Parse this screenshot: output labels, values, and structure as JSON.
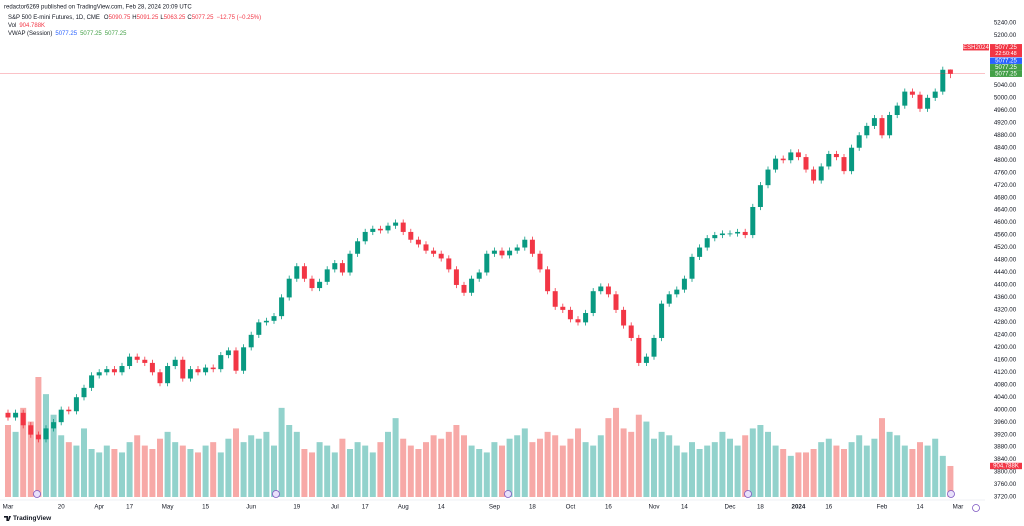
{
  "chart_data": {
    "type": "candlestick",
    "publisher": "redactor6269 published on TradingView.com, Feb 28, 2024 20:09 UTC",
    "title": "S&P 500 E-mini Futures, 1D, CME",
    "ohlc_keys": [
      "O",
      "H",
      "L",
      "C"
    ],
    "change": "−12.75 (−0.25%)",
    "categories": [
      "Mar",
      null,
      null,
      null,
      null,
      null,
      null,
      "20",
      null,
      null,
      null,
      null,
      "Apr",
      null,
      null,
      null,
      "17",
      null,
      null,
      null,
      null,
      "May",
      null,
      null,
      null,
      null,
      "15",
      null,
      null,
      null,
      null,
      null,
      "Jun",
      null,
      null,
      null,
      null,
      null,
      "19",
      null,
      null,
      null,
      null,
      "Jul",
      null,
      null,
      null,
      "17",
      null,
      null,
      null,
      null,
      "Aug",
      null,
      null,
      null,
      null,
      "14",
      null,
      null,
      null,
      null,
      null,
      null,
      "Sep",
      null,
      null,
      null,
      null,
      "18",
      null,
      null,
      null,
      null,
      "Oct",
      null,
      null,
      null,
      null,
      "16",
      null,
      null,
      null,
      null,
      null,
      "Nov",
      null,
      null,
      null,
      "14",
      null,
      null,
      null,
      null,
      null,
      "Dec",
      null,
      null,
      null,
      "18",
      null,
      null,
      null,
      null,
      "2024",
      null,
      null,
      null,
      "16",
      null,
      null,
      null,
      null,
      null,
      null,
      "Feb",
      null,
      null,
      null,
      null,
      "14",
      null,
      null,
      null,
      null,
      "Mar"
    ],
    "series": [
      {
        "name": "ESH2024",
        "up_color": "#089981",
        "down_color": "#f23645",
        "open": [
          3990,
          3975,
          3990,
          3950,
          3920,
          3905,
          3940,
          3960,
          4000,
          3995,
          4040,
          4070,
          4110,
          4120,
          4130,
          4120,
          4140,
          4170,
          4160,
          4150,
          4120,
          4085,
          4140,
          4160,
          4100,
          4130,
          4120,
          4135,
          4130,
          4175,
          4190,
          4125,
          4200,
          4240,
          4280,
          4285,
          4300,
          4360,
          4420,
          4460,
          4420,
          4390,
          4410,
          4450,
          4470,
          4440,
          4500,
          4540,
          4570,
          4580,
          4575,
          4590,
          4600,
          4570,
          4545,
          4530,
          4510,
          4500,
          4485,
          4450,
          4400,
          4375,
          4420,
          4440,
          4500,
          4510,
          4495,
          4510,
          4520,
          4545,
          4500,
          4450,
          4380,
          4330,
          4320,
          4290,
          4280,
          4310,
          4380,
          4395,
          4370,
          4320,
          4270,
          4230,
          4150,
          4170,
          4230,
          4340,
          4370,
          4385,
          4420,
          4490,
          4520,
          4550,
          4560,
          4565,
          4565,
          4570,
          4560,
          4650,
          4720,
          4770,
          4805,
          4800,
          4825,
          4810,
          4770,
          4735,
          4780,
          4820,
          4810,
          4765,
          4840,
          4880,
          4910,
          4935,
          4880,
          4945,
          4975,
          5020,
          5010,
          4965,
          5000,
          5020,
          5090.75,
          null
        ],
        "high": [
          4000,
          4000,
          4000,
          3960,
          3930,
          3950,
          3970,
          4010,
          4010,
          4050,
          4080,
          4120,
          4130,
          4140,
          4140,
          4150,
          4180,
          4180,
          4170,
          4160,
          4130,
          4150,
          4170,
          4170,
          4140,
          4140,
          4145,
          4145,
          4185,
          4200,
          4200,
          4210,
          4250,
          4290,
          4295,
          4310,
          4370,
          4430,
          4470,
          4470,
          4430,
          4420,
          4460,
          4480,
          4480,
          4510,
          4550,
          4580,
          4590,
          4590,
          4600,
          4610,
          4610,
          4580,
          4555,
          4540,
          4520,
          4510,
          4495,
          4460,
          4410,
          4430,
          4450,
          4510,
          4520,
          4520,
          4520,
          4530,
          4555,
          4555,
          4510,
          4460,
          4390,
          4340,
          4330,
          4300,
          4320,
          4390,
          4405,
          4405,
          4380,
          4330,
          4280,
          4240,
          4180,
          4240,
          4350,
          4380,
          4395,
          4430,
          4500,
          4530,
          4560,
          4570,
          4575,
          4575,
          4580,
          4580,
          4660,
          4730,
          4780,
          4815,
          4815,
          4835,
          4835,
          4820,
          4780,
          4790,
          4830,
          4830,
          4820,
          4850,
          4890,
          4920,
          4945,
          4945,
          4955,
          4985,
          5030,
          5030,
          5020,
          5010,
          5030,
          5100,
          5091.25,
          null
        ],
        "low": [
          3965,
          3965,
          3940,
          3910,
          3895,
          3895,
          3930,
          3950,
          3985,
          3985,
          4030,
          4060,
          4100,
          4110,
          4110,
          4110,
          4130,
          4150,
          4140,
          4110,
          4075,
          4075,
          4130,
          4090,
          4090,
          4110,
          4110,
          4120,
          4120,
          4165,
          4115,
          4115,
          4190,
          4230,
          4270,
          4275,
          4290,
          4350,
          4410,
          4410,
          4380,
          4380,
          4400,
          4440,
          4430,
          4430,
          4490,
          4530,
          4560,
          4565,
          4565,
          4580,
          4560,
          4535,
          4520,
          4500,
          4490,
          4475,
          4440,
          4390,
          4365,
          4365,
          4410,
          4430,
          4490,
          4485,
          4485,
          4500,
          4510,
          4490,
          4440,
          4370,
          4320,
          4310,
          4280,
          4270,
          4270,
          4300,
          4370,
          4360,
          4310,
          4260,
          4220,
          4140,
          4140,
          4160,
          4220,
          4330,
          4360,
          4375,
          4410,
          4480,
          4510,
          4540,
          4550,
          4555,
          4555,
          4550,
          4550,
          4640,
          4710,
          4760,
          4790,
          4790,
          4800,
          4760,
          4725,
          4725,
          4770,
          4800,
          4755,
          4755,
          4830,
          4870,
          4900,
          4870,
          4870,
          4935,
          4965,
          5000,
          4955,
          4955,
          4990,
          5010,
          5063.25,
          null
        ],
        "close": [
          3975,
          3990,
          3950,
          3920,
          3905,
          3940,
          3960,
          4000,
          3995,
          4040,
          4070,
          4110,
          4120,
          4130,
          4120,
          4140,
          4170,
          4160,
          4150,
          4120,
          4085,
          4140,
          4160,
          4100,
          4130,
          4120,
          4135,
          4130,
          4175,
          4190,
          4125,
          4200,
          4240,
          4280,
          4285,
          4300,
          4360,
          4420,
          4460,
          4420,
          4390,
          4410,
          4450,
          4470,
          4440,
          4500,
          4540,
          4570,
          4580,
          4575,
          4590,
          4600,
          4570,
          4545,
          4530,
          4510,
          4500,
          4485,
          4450,
          4400,
          4375,
          4420,
          4440,
          4500,
          4510,
          4495,
          4510,
          4520,
          4545,
          4500,
          4450,
          4380,
          4330,
          4320,
          4290,
          4280,
          4310,
          4380,
          4395,
          4370,
          4320,
          4270,
          4230,
          4150,
          4170,
          4230,
          4340,
          4370,
          4385,
          4420,
          4490,
          4520,
          4550,
          4560,
          4565,
          4565,
          4570,
          4560,
          4650,
          4720,
          4770,
          4805,
          4800,
          4825,
          4810,
          4770,
          4735,
          4780,
          4820,
          4810,
          4765,
          4840,
          4880,
          4910,
          4935,
          4880,
          4945,
          4975,
          5020,
          5010,
          4965,
          5000,
          5020,
          5090,
          5077.25,
          null
        ]
      }
    ],
    "volume": {
      "name": "Vol",
      "up_color": "#92d2cc",
      "down_color": "#f7a9a7",
      "last_label": "904.788K",
      "values": [
        2100,
        1900,
        2600,
        2200,
        3500,
        3000,
        2400,
        1800,
        1600,
        1500,
        2000,
        1400,
        1300,
        1500,
        1400,
        1300,
        1600,
        1800,
        1500,
        1400,
        1700,
        1900,
        1600,
        1500,
        1400,
        1300,
        1500,
        1600,
        1300,
        1700,
        2000,
        1600,
        1800,
        1700,
        1900,
        1500,
        2600,
        2100,
        1900,
        1400,
        1300,
        1600,
        1500,
        1300,
        1700,
        1400,
        1600,
        1500,
        1300,
        1600,
        1900,
        2300,
        1700,
        1500,
        1400,
        1600,
        1800,
        1700,
        1900,
        2100,
        1800,
        1500,
        1400,
        1300,
        1600,
        1500,
        1700,
        1800,
        2000,
        1600,
        1700,
        1900,
        1800,
        1500,
        1700,
        2000,
        1600,
        1500,
        1800,
        2300,
        2600,
        2000,
        1900,
        2400,
        2200,
        1700,
        1900,
        1800,
        1500,
        1300,
        1600,
        1400,
        1500,
        1600,
        1900,
        1700,
        1500,
        1800,
        2000,
        2100,
        1900,
        1500,
        1400,
        1200,
        1300,
        1300,
        1400,
        1600,
        1700,
        1500,
        1400,
        1600,
        1800,
        1500,
        1700,
        2300,
        1900,
        1800,
        1500,
        1400,
        1600,
        1500,
        1700,
        1200,
        904.788,
        null
      ]
    },
    "vwap": {
      "name": "VWAP (Session)",
      "values": [
        5077.25,
        5077.25,
        5077.25
      ],
      "colors": [
        "#2962ff",
        "#43a047",
        "#43a047"
      ]
    },
    "countdown": "22:50:48",
    "ylim": [
      3720,
      5240
    ],
    "yticks": [
      {
        "value": 3720,
        "label": "3720.00"
      },
      {
        "value": 3760,
        "label": "3760.00"
      },
      {
        "value": 3800,
        "label": "3800.00"
      },
      {
        "value": 3840,
        "label": "3840.00"
      },
      {
        "value": 3880,
        "label": "3880.00"
      },
      {
        "value": 3920,
        "label": "3920.00"
      },
      {
        "value": 3960,
        "label": "3960.00"
      },
      {
        "value": 4000,
        "label": "4000.00"
      },
      {
        "value": 4040,
        "label": "4040.00"
      },
      {
        "value": 4080,
        "label": "4080.00"
      },
      {
        "value": 4120,
        "label": "4120.00"
      },
      {
        "value": 4160,
        "label": "4160.00"
      },
      {
        "value": 4200,
        "label": "4200.00"
      },
      {
        "value": 4240,
        "label": "4240.00"
      },
      {
        "value": 4280,
        "label": "4280.00"
      },
      {
        "value": 4320,
        "label": "4320.00"
      },
      {
        "value": 4360,
        "label": "4360.00"
      },
      {
        "value": 4400,
        "label": "4400.00"
      },
      {
        "value": 4440,
        "label": "4440.00"
      },
      {
        "value": 4480,
        "label": "4480.00"
      },
      {
        "value": 4520,
        "label": "4520.00"
      },
      {
        "value": 4560,
        "label": "4560.00"
      },
      {
        "value": 4600,
        "label": "4600.00"
      },
      {
        "value": 4640,
        "label": "4640.00"
      },
      {
        "value": 4680,
        "label": "4680.00"
      },
      {
        "value": 4720,
        "label": "4720.00"
      },
      {
        "value": 4760,
        "label": "4760.00"
      },
      {
        "value": 4800,
        "label": "4800.00"
      },
      {
        "value": 4840,
        "label": "4840.00"
      },
      {
        "value": 4880,
        "label": "4880.00"
      },
      {
        "value": 4920,
        "label": "4920.00"
      },
      {
        "value": 4960,
        "label": "4960.00"
      },
      {
        "value": 5000,
        "label": "5000.00"
      },
      {
        "value": 5040,
        "label": "5040.00"
      },
      {
        "value": 5080,
        "label": "5080.00"
      },
      {
        "value": 5120,
        "label": "5120.00"
      },
      {
        "value": 5160,
        "label": "5160.00"
      },
      {
        "value": 5200,
        "label": "5200.00"
      },
      {
        "value": 5240,
        "label": "5240.00"
      }
    ],
    "footer": "TradingView"
  }
}
